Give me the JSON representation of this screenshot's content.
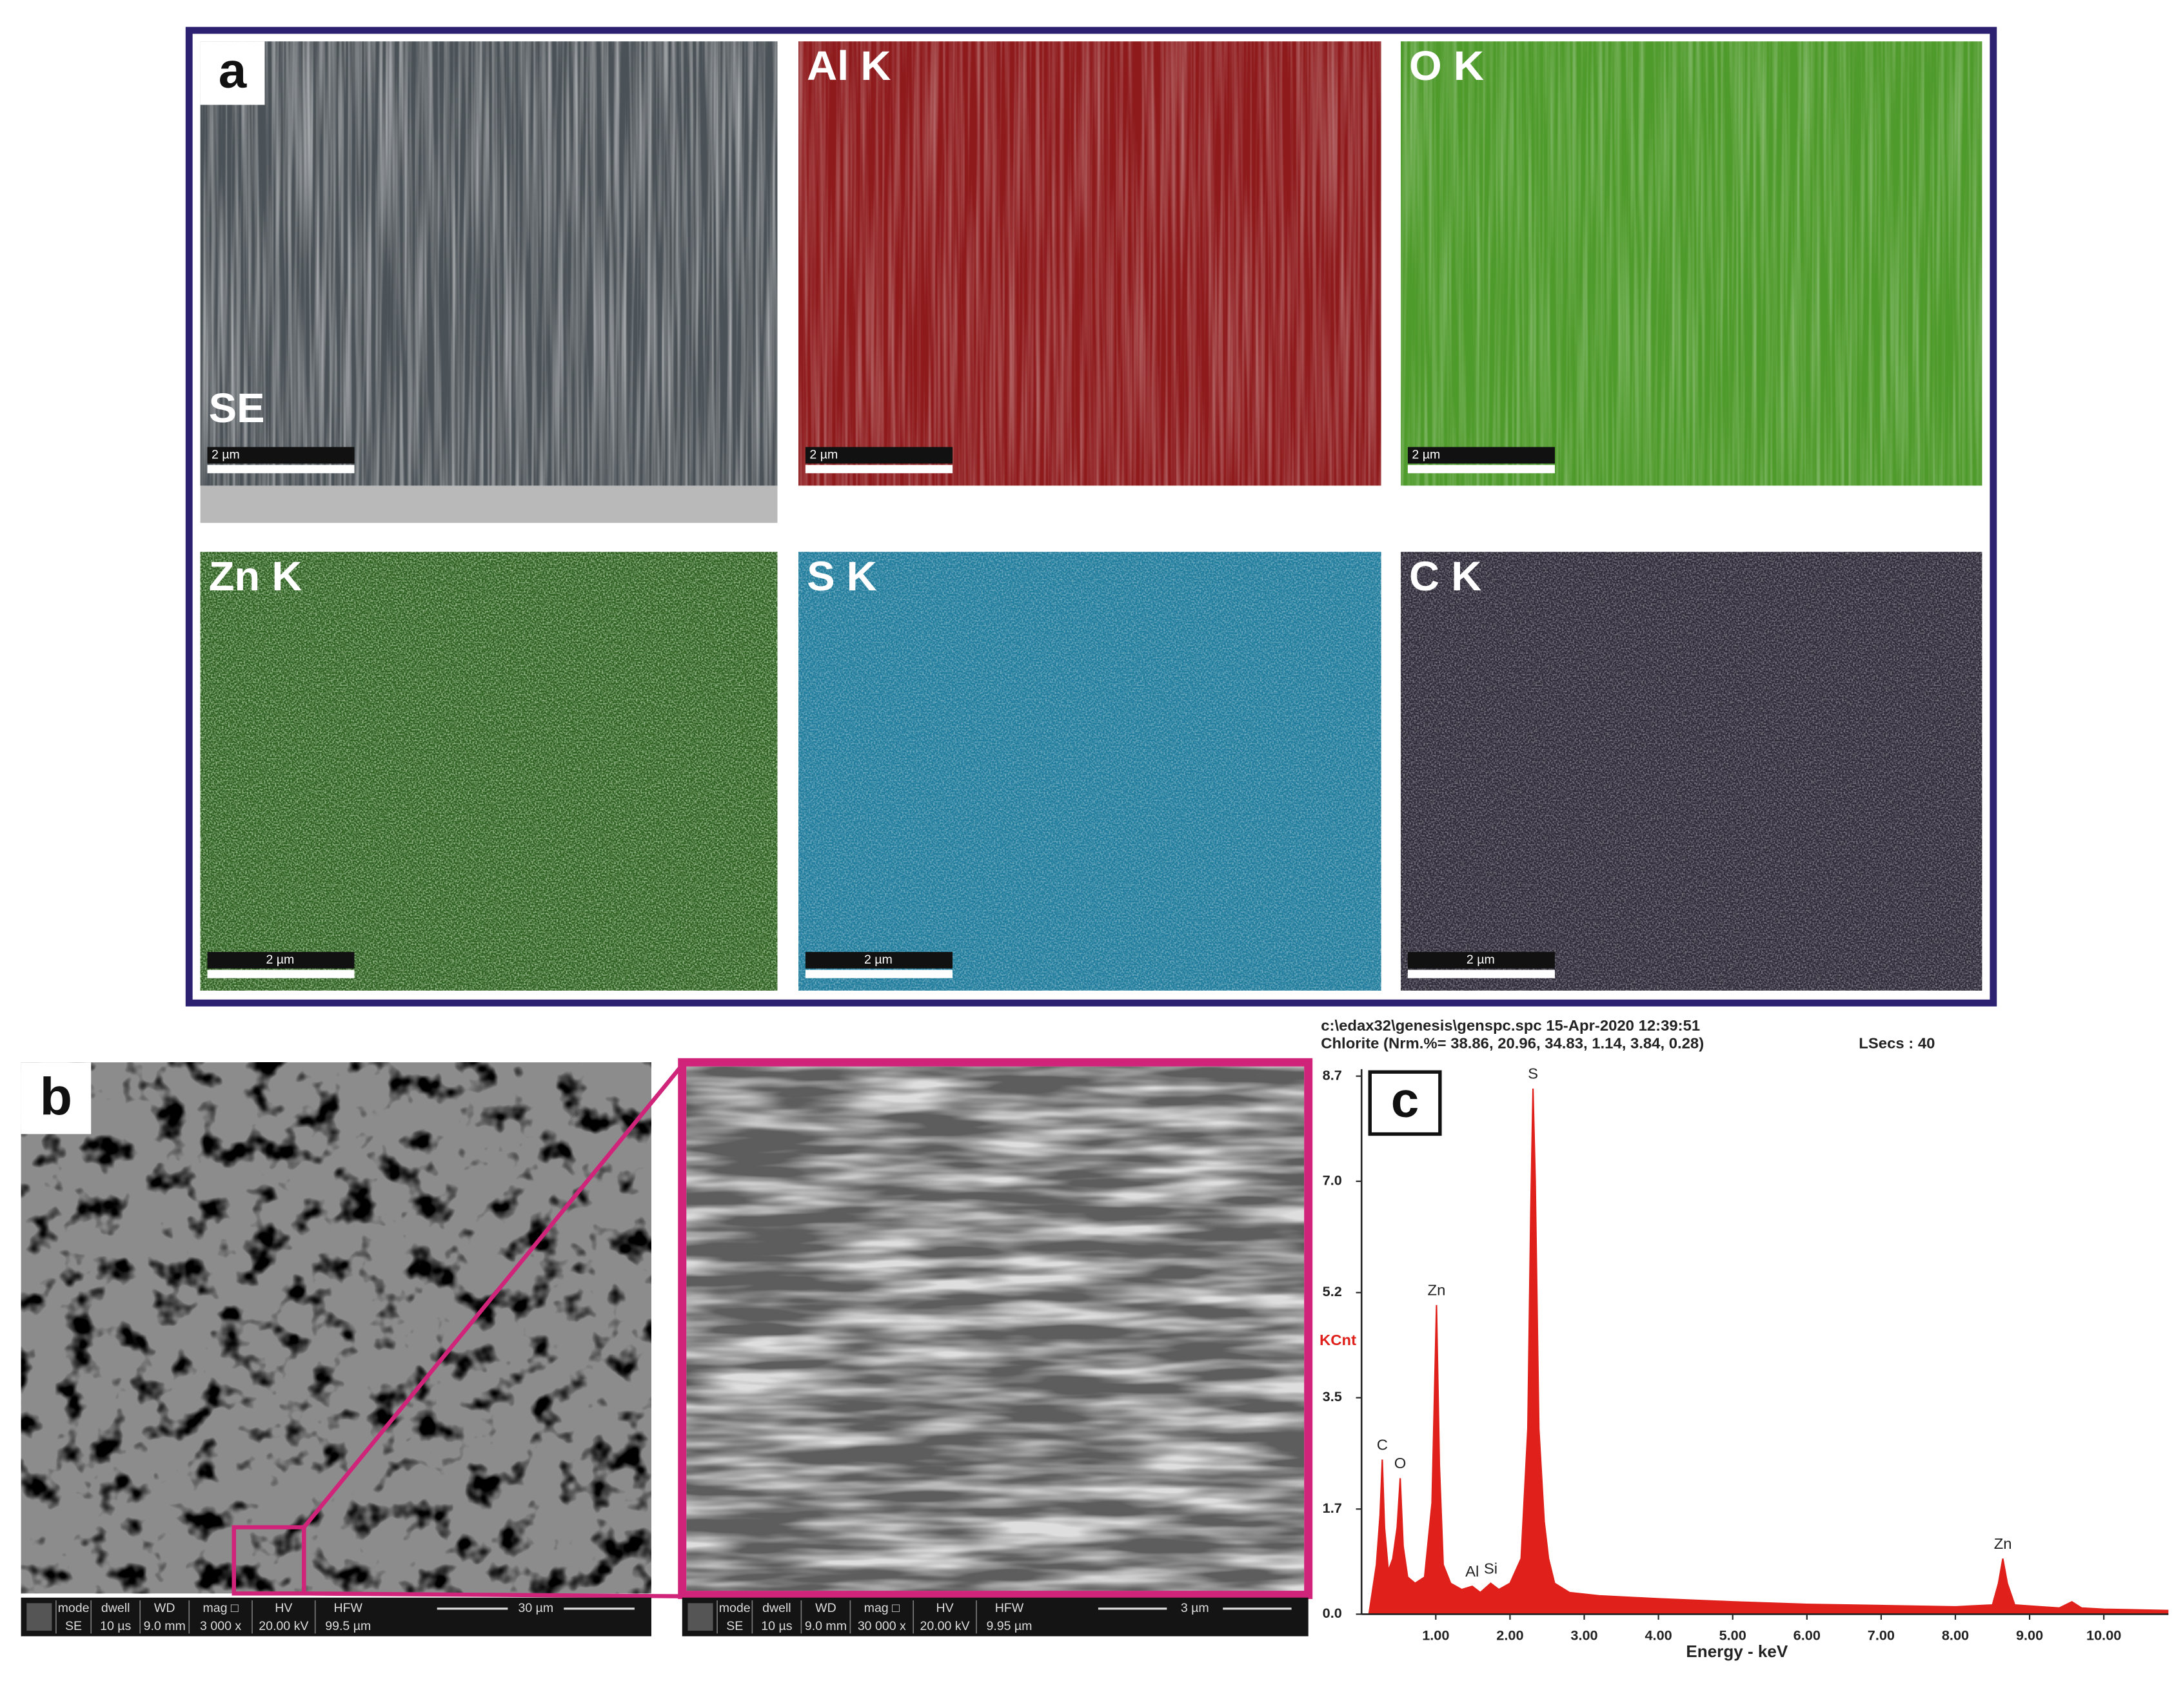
{
  "panel_a": {
    "label": "a",
    "maps": [
      {
        "label": "SE",
        "scale_bar": "2 µm"
      },
      {
        "label": "Al K",
        "scale_bar": "2 µm"
      },
      {
        "label": "O K",
        "scale_bar": "2 µm"
      },
      {
        "label": "Zn K",
        "scale_bar": "2 µm"
      },
      {
        "label": "S K",
        "scale_bar": "2 µm"
      },
      {
        "label": "C K",
        "scale_bar": "2 µm"
      }
    ]
  },
  "panel_b": {
    "label": "b",
    "info_bars": [
      {
        "headers": [
          "mode",
          "dwell",
          "WD",
          "mag □",
          "HV",
          "HFW"
        ],
        "values": [
          "SE",
          "10 µs",
          "9.0 mm",
          "3 000 x",
          "20.00 kV",
          "99.5 µm"
        ],
        "scale": "30 µm"
      },
      {
        "headers": [
          "mode",
          "dwell",
          "WD",
          "mag □",
          "HV",
          "HFW"
        ],
        "values": [
          "SE",
          "10 µs",
          "9.0 mm",
          "30 000 x",
          "20.00 kV",
          "9.95 µm"
        ],
        "scale": "3 µm"
      }
    ]
  },
  "chart_data": {
    "type": "area",
    "panel_label": "c",
    "header": [
      "c:\\edax32\\genesis\\genspc.spc  15-Apr-2020 12:39:51",
      "Chlorite (Nrm.%= 38.86, 20.96, 34.83, 1.14, 3.84, 0.28)"
    ],
    "live_time": "LSecs :  40",
    "xlabel": "Energy - keV",
    "ylabel": "KCnt",
    "color": "#e0201b",
    "x": [
      0.1,
      0.2,
      0.25,
      0.28,
      0.31,
      0.36,
      0.42,
      0.48,
      0.52,
      0.56,
      0.62,
      0.72,
      0.85,
      0.95,
      1.01,
      1.05,
      1.1,
      1.2,
      1.35,
      1.49,
      1.6,
      1.74,
      1.85,
      2.0,
      2.15,
      2.24,
      2.28,
      2.31,
      2.34,
      2.39,
      2.46,
      2.52,
      2.6,
      2.8,
      3.2,
      4.0,
      5.0,
      6.0,
      7.0,
      8.0,
      8.5,
      8.58,
      8.64,
      8.7,
      8.8,
      9.4,
      9.57,
      9.7,
      10.0,
      10.5,
      10.87
    ],
    "values": [
      0.0,
      0.8,
      1.6,
      2.5,
      1.4,
      0.7,
      0.9,
      1.4,
      2.2,
      1.1,
      0.6,
      0.5,
      0.6,
      1.8,
      5.0,
      2.4,
      0.8,
      0.5,
      0.4,
      0.45,
      0.35,
      0.5,
      0.4,
      0.5,
      0.9,
      3.0,
      6.5,
      8.5,
      7.0,
      3.0,
      1.5,
      0.9,
      0.5,
      0.35,
      0.3,
      0.25,
      0.2,
      0.16,
      0.14,
      0.12,
      0.15,
      0.5,
      0.9,
      0.5,
      0.15,
      0.1,
      0.2,
      0.1,
      0.08,
      0.07,
      0.06
    ],
    "xlim": [
      0,
      10.87
    ],
    "ylim": [
      0,
      8.7
    ],
    "xticks": [
      {
        "value": 1,
        "label": "1.00"
      },
      {
        "value": 2,
        "label": "2.00"
      },
      {
        "value": 3,
        "label": "3.00"
      },
      {
        "value": 4,
        "label": "4.00"
      },
      {
        "value": 5,
        "label": "5.00"
      },
      {
        "value": 6,
        "label": "6.00"
      },
      {
        "value": 7,
        "label": "7.00"
      },
      {
        "value": 8,
        "label": "8.00"
      },
      {
        "value": 9,
        "label": "9.00"
      },
      {
        "value": 10,
        "label": "10.00"
      }
    ],
    "yticks": [
      {
        "value": 0,
        "label": "0.0"
      },
      1.7,
      3.5,
      5.2,
      {
        "value": 7,
        "label": "7.0"
      },
      8.7
    ],
    "annotations": [
      {
        "text": "C",
        "x": 0.28,
        "y": 2.5
      },
      {
        "text": "O",
        "x": 0.52,
        "y": 2.2
      },
      {
        "text": "Zn",
        "x": 1.01,
        "y": 5.0
      },
      {
        "text": "Al",
        "x": 1.49,
        "y": 0.45
      },
      {
        "text": "Si",
        "x": 1.74,
        "y": 0.5
      },
      {
        "text": "S",
        "x": 2.31,
        "y": 8.5
      },
      {
        "text": "Zn",
        "x": 8.64,
        "y": 0.9
      }
    ]
  }
}
